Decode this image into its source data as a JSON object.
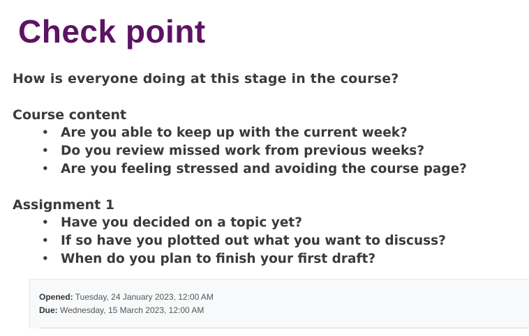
{
  "title": "Check point",
  "question": "How is everyone doing at this stage in the course?",
  "sections": [
    {
      "heading": "Course content",
      "items": [
        "Are you able to keep up with the current week?",
        "Do you review missed work from previous weeks?",
        "Are you feeling stressed and avoiding the course page?"
      ]
    },
    {
      "heading": "Assignment 1",
      "items": [
        "Have you decided on a topic yet?",
        "If so have you plotted out what you want to discuss?",
        "When do you plan to finish your first draft?"
      ]
    }
  ],
  "bullet_glyph": "•",
  "dates": {
    "opened_label": "Opened:",
    "opened_value": "Tuesday, 24 January 2023, 12:00 AM",
    "due_label": "Due:",
    "due_value": "Wednesday, 15 March 2023, 12:00 AM"
  },
  "colors": {
    "title": "#5c1363",
    "body_text": "#3a3a3a"
  }
}
